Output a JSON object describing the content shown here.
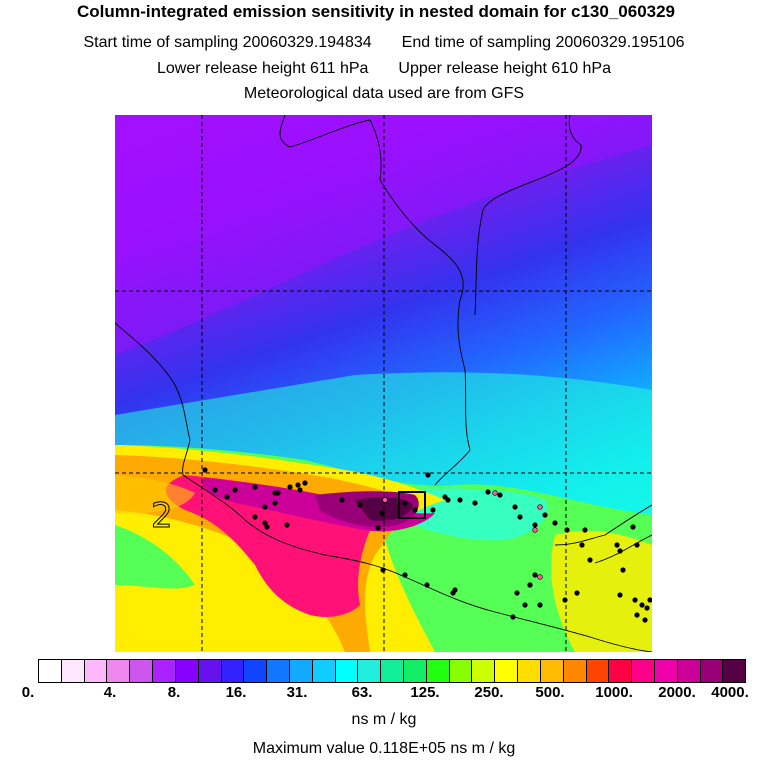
{
  "header": {
    "title": "Column-integrated emission sensitivity in nested domain for c130_060329",
    "start_label": "Start time of sampling 20060329.194834",
    "end_label": "End time of sampling 20060329.195106",
    "lower_label": "Lower release height  611 hPa",
    "upper_label": "Upper release height  610 hPa",
    "met_label": "Meteorological data used are from GFS"
  },
  "map": {
    "region_label": "2"
  },
  "colorbar": {
    "colors": [
      "#ffffff",
      "#ffe6ff",
      "#ffb8ff",
      "#ee88ee",
      "#cc55ee",
      "#aa22ff",
      "#8800ff",
      "#6611ee",
      "#3322ff",
      "#1144ff",
      "#1177ff",
      "#11aaff",
      "#11ccff",
      "#00ffff",
      "#22eedd",
      "#11ee99",
      "#11ee66",
      "#22ff11",
      "#88ff00",
      "#ccff00",
      "#ffff00",
      "#ffdd00",
      "#ffbb00",
      "#ff8800",
      "#ff4400",
      "#ff0044",
      "#ff0088",
      "#ee00aa",
      "#cc0099",
      "#990077",
      "#550044"
    ],
    "ticks": [
      "0.",
      "4.",
      "8.",
      "16.",
      "31.",
      "63.",
      "125.",
      "250.",
      "500.",
      "1000.",
      "2000.",
      "4000."
    ],
    "units": "ns m / kg"
  },
  "footer": {
    "max_value": "Maximum value  0.118E+05 ns m / kg"
  }
}
